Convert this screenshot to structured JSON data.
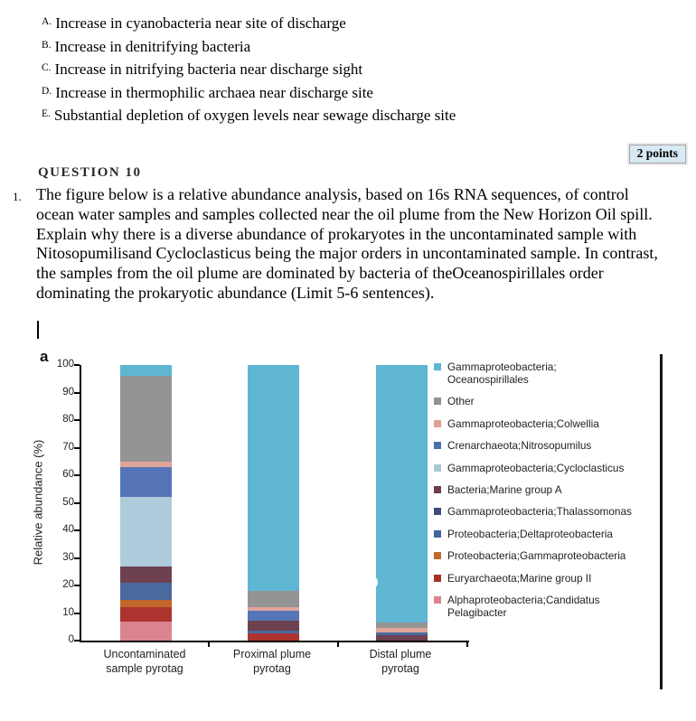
{
  "options": [
    {
      "letter": "A.",
      "text": "Increase in cyanobacteria near site of discharge"
    },
    {
      "letter": "B.",
      "text": "Increase in denitrifying bacteria"
    },
    {
      "letter": "C.",
      "text": "Increase in nitrifying bacteria near discharge sight"
    },
    {
      "letter": "D.",
      "text": "Increase in thermophilic archaea near discharge site"
    },
    {
      "letter": "E.",
      "text": "Substantial depletion of oxygen levels near sewage discharge site"
    }
  ],
  "question": {
    "points_badge": "2 points",
    "heading": "QUESTION 10",
    "number": "1.",
    "text": "The figure below is a relative abundance analysis, based on 16s RNA sequences, of control ocean water samples and samples collected near the oil plume from the New Horizon Oil spill. Explain why there is a diverse abundance of prokaryotes in the uncontaminated sample with Nitosopumilisand Cycloclasticus being the major orders in uncontaminated sample. In contrast, the samples from the oil plume are dominated by bacteria of theOceanospirillales order dominating the prokaryotic abundance (Limit 5-6 sentences)."
  },
  "chart_data": {
    "type": "bar",
    "stacked": true,
    "panel_label": "a",
    "title": "",
    "xlabel": "",
    "ylabel": "Relative abundance (%)",
    "ylim": [
      0,
      100
    ],
    "yticks": [
      0,
      10,
      20,
      30,
      40,
      50,
      60,
      70,
      80,
      90,
      100
    ],
    "grid": false,
    "legend_position": "right",
    "categories": [
      "Uncontaminated\nsample pyrotag",
      "Proximal plume\npyrotag",
      "Distal plume\npyrotag"
    ],
    "legend": [
      {
        "label": "Gammaproteobacteria;\nOceanospirillales",
        "color": "#5fb6d2"
      },
      {
        "label": "Other",
        "color": "#919191"
      },
      {
        "label": "Gammaproteobacteria;Colwellia",
        "color": "#dd9f94"
      },
      {
        "label": "Crenarchaeota;Nitrosopumilus",
        "color": "#4a6fae"
      },
      {
        "label": "Gammaproteobacteria;Cycloclasticus",
        "color": "#a9c8d8"
      },
      {
        "label": "Bacteria;Marine group A",
        "color": "#6e3c46"
      },
      {
        "label": "Gammaproteobacteria;Thalassomonas",
        "color": "#3d4c7c"
      },
      {
        "label": "Proteobacteria;Deltaproteobacteria",
        "color": "#41639e"
      },
      {
        "label": "Proteobacteria;Gammaproteobacteria",
        "color": "#c2672a"
      },
      {
        "label": "Euryarchaeota;Marine group II",
        "color": "#a93029"
      },
      {
        "label": "Alphaproteobacteria;Candidatus\nPelagibacter",
        "color": "#d9848e"
      }
    ],
    "bars": [
      {
        "category": "Uncontaminated sample pyrotag",
        "segments_bottom_to_top": [
          {
            "series": "Alphaproteobacteria;Candidatus Pelagibacter",
            "color": "#d9848e",
            "value": 6.8
          },
          {
            "series": "Euryarchaeota;Marine group II",
            "color": "#ad332e",
            "value": 5.2
          },
          {
            "series": "Proteobacteria;Gammaproteobacteria",
            "color": "#c2672a",
            "value": 2.6
          },
          {
            "series": "Proteobacteria;Deltaproteobacteria",
            "color": "#49699f",
            "value": 6.5
          },
          {
            "series": "Bacteria;Marine group A",
            "color": "#6e4150",
            "value": 5.9
          },
          {
            "series": "Gammaproteobacteria;Cycloclasticus",
            "color": "#aecbdc",
            "value": 25.0
          },
          {
            "series": "Crenarchaeota;Nitrosopumilus",
            "color": "#5575b8",
            "value": 11.0
          },
          {
            "series": "Gammaproteobacteria;Colwellia",
            "color": "#dfa49a",
            "value": 2.0
          },
          {
            "series": "Other",
            "color": "#949494",
            "value": 31.0
          },
          {
            "series": "Gammaproteobacteria;Oceanospirillales",
            "color": "#5fb6d2",
            "value": 4.0
          }
        ]
      },
      {
        "category": "Proximal plume pyrotag",
        "segments_bottom_to_top": [
          {
            "series": "Euryarchaeota;Marine group II",
            "color": "#ad332e",
            "value": 2.5
          },
          {
            "series": "Proteobacteria;Deltaproteobacteria",
            "color": "#49699f",
            "value": 1.2
          },
          {
            "series": "Bacteria;Marine group A",
            "color": "#6e4150",
            "value": 3.4
          },
          {
            "series": "Crenarchaeota;Nitrosopumilus",
            "color": "#5575b8",
            "value": 3.8
          },
          {
            "series": "Gammaproteobacteria;Colwellia",
            "color": "#dfa49a",
            "value": 1.1
          },
          {
            "series": "Other",
            "color": "#949494",
            "value": 6.0
          },
          {
            "series": "Gammaproteobacteria;Oceanospirillales",
            "color": "#5fb6d2",
            "value": 82.0
          }
        ]
      },
      {
        "category": "Distal plume pyrotag",
        "segments_bottom_to_top": [
          {
            "series": "Bacteria;Marine group A",
            "color": "#6e4150",
            "value": 1.9
          },
          {
            "series": "Proteobacteria;Deltaproteobacteria",
            "color": "#49699f",
            "value": 1.1
          },
          {
            "series": "Gammaproteobacteria;Colwellia",
            "color": "#dfa49a",
            "value": 1.5
          },
          {
            "series": "Other",
            "color": "#949494",
            "value": 2.0
          },
          {
            "series": "Gammaproteobacteria;Oceanospirillales",
            "color": "#5fb6d2",
            "value": 93.5
          }
        ]
      }
    ]
  }
}
